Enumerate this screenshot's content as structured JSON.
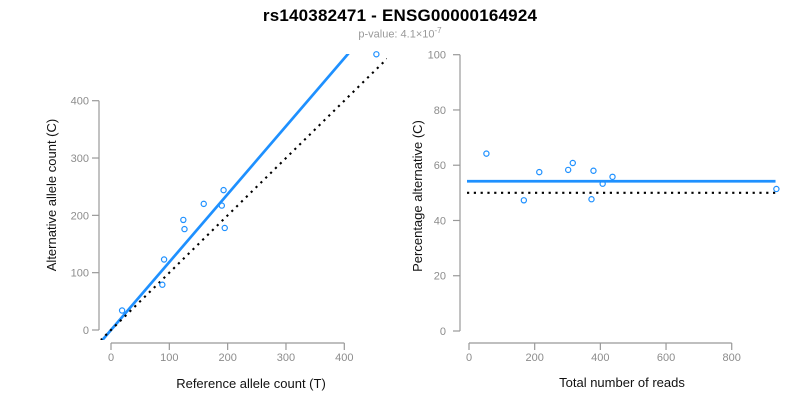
{
  "title": "rs140382471 - ENSG00000164924",
  "subtitle": {
    "text": "p-value: 4.1×10",
    "exponent": "-7"
  },
  "colors": {
    "accent_blue": "#1E90FF",
    "axis_gray": "#999999",
    "tick_label_gray": "#8c8c8c",
    "subtitle_gray": "#999999",
    "title_black": "#000000"
  },
  "chart_data": [
    {
      "type": "scatter",
      "name": "allele-counts-scatter",
      "xlabel": "Reference allele count (T)",
      "ylabel": "Alternative allele count (C)",
      "xticks": [
        0,
        100,
        200,
        300,
        400
      ],
      "yticks": [
        0,
        100,
        200,
        300,
        400
      ],
      "xlim": [
        0,
        455
      ],
      "ylim": [
        0,
        481
      ],
      "grid": false,
      "legend": null,
      "point_color": "#1E90FF",
      "points": [
        [
          19,
          34
        ],
        [
          88,
          79
        ],
        [
          91,
          123
        ],
        [
          124,
          192
        ],
        [
          126,
          176
        ],
        [
          159,
          220
        ],
        [
          190,
          217
        ],
        [
          193,
          244
        ],
        [
          195,
          178
        ],
        [
          455,
          481
        ]
      ],
      "lines": [
        {
          "name": "fit-line",
          "kind": "abline",
          "slope": 1.185,
          "intercept": 0,
          "style": "solid",
          "color": "#1E90FF"
        },
        {
          "name": "identity-line",
          "kind": "abline",
          "slope": 1,
          "intercept": 0,
          "style": "dotted",
          "color": "#000000"
        }
      ]
    },
    {
      "type": "scatter",
      "name": "percentage-alternative-scatter",
      "xlabel": "Total number of reads",
      "ylabel": "Percentage alternative (C)",
      "xticks": [
        0,
        200,
        400,
        600,
        800
      ],
      "yticks": [
        0,
        20,
        40,
        60,
        80,
        100
      ],
      "xlim": [
        0,
        936
      ],
      "ylim": [
        0,
        100
      ],
      "grid": false,
      "legend": null,
      "point_color": "#1E90FF",
      "points": [
        [
          53,
          64.2
        ],
        [
          167,
          47.3
        ],
        [
          214,
          57.5
        ],
        [
          302,
          58.3
        ],
        [
          316,
          60.8
        ],
        [
          373,
          47.7
        ],
        [
          379,
          58.0
        ],
        [
          407,
          53.3
        ],
        [
          437,
          55.8
        ],
        [
          936,
          51.4
        ]
      ],
      "lines": [
        {
          "name": "mean-percentage-line",
          "kind": "hline",
          "y": 54.2,
          "style": "solid",
          "color": "#1E90FF"
        },
        {
          "name": "fifty-percent-line",
          "kind": "hline",
          "y": 50,
          "style": "dotted",
          "color": "#000000"
        }
      ]
    }
  ]
}
